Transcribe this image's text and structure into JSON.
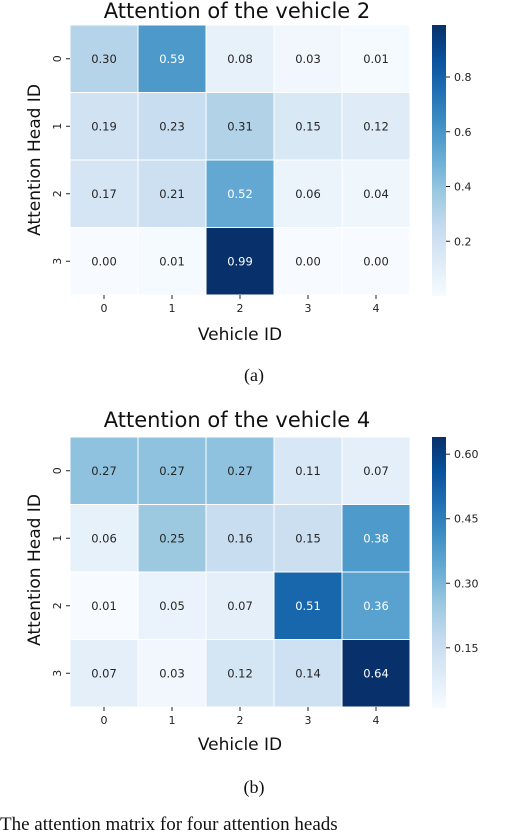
{
  "chart_data": [
    {
      "type": "heatmap",
      "title": "Attention of the vehicle 2",
      "xlabel": "Vehicle ID",
      "ylabel": "Attention Head ID",
      "x_categories": [
        "0",
        "1",
        "2",
        "3",
        "4"
      ],
      "y_categories": [
        "0",
        "1",
        "2",
        "3"
      ],
      "values": [
        [
          "0.30",
          "0.59",
          "0.08",
          "0.03",
          "0.01"
        ],
        [
          "0.19",
          "0.23",
          "0.31",
          "0.15",
          "0.12"
        ],
        [
          "0.17",
          "0.21",
          "0.52",
          "0.06",
          "0.04"
        ],
        [
          "0.00",
          "0.01",
          "0.99",
          "0.00",
          "0.00"
        ]
      ],
      "colormap": "Blues",
      "colorbar_range": [
        0.0,
        0.99
      ],
      "colorbar_ticks": [
        "0.2",
        "0.4",
        "0.6",
        "0.8"
      ],
      "caption": "(a)"
    },
    {
      "type": "heatmap",
      "title": "Attention of the vehicle 4",
      "xlabel": "Vehicle ID",
      "ylabel": "Attention Head ID",
      "x_categories": [
        "0",
        "1",
        "2",
        "3",
        "4"
      ],
      "y_categories": [
        "0",
        "1",
        "2",
        "3"
      ],
      "values": [
        [
          "0.27",
          "0.27",
          "0.27",
          "0.11",
          "0.07"
        ],
        [
          "0.06",
          "0.25",
          "0.16",
          "0.15",
          "0.38"
        ],
        [
          "0.01",
          "0.05",
          "0.07",
          "0.51",
          "0.36"
        ],
        [
          "0.07",
          "0.03",
          "0.12",
          "0.14",
          "0.64"
        ]
      ],
      "colormap": "Blues",
      "colorbar_range": [
        0.01,
        0.64
      ],
      "colorbar_ticks": [
        "0.15",
        "0.30",
        "0.45",
        "0.60"
      ],
      "caption": "(b)"
    }
  ],
  "footer_text": "The attention matrix for four attention heads"
}
